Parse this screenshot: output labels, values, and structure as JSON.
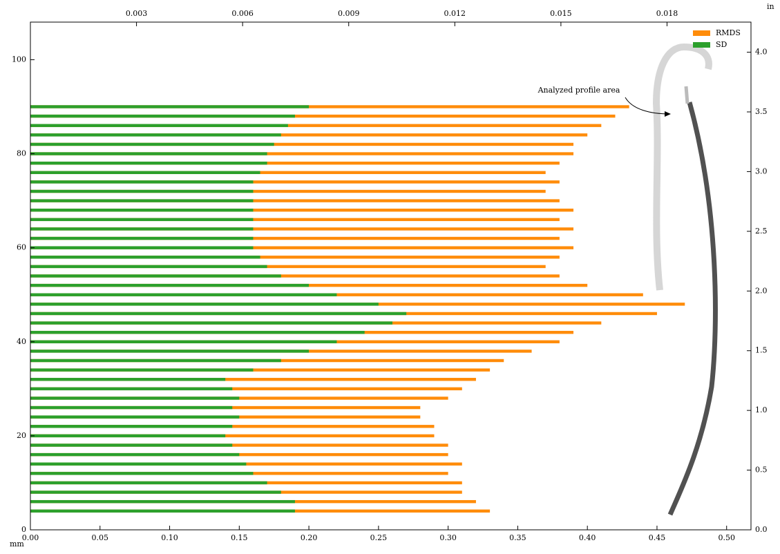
{
  "chart_data": {
    "type": "barh-overlap",
    "x_unit_label": "mm",
    "y2_unit_label": "in",
    "annotation": "Analyzed profile area",
    "y": [
      4,
      6,
      8,
      10,
      12,
      14,
      16,
      18,
      20,
      22,
      24,
      26,
      28,
      30,
      32,
      34,
      36,
      38,
      40,
      42,
      44,
      46,
      48,
      50,
      52,
      54,
      56,
      58,
      60,
      62,
      64,
      66,
      68,
      70,
      72,
      74,
      76,
      78,
      80,
      82,
      84,
      86,
      88,
      90
    ],
    "series": [
      {
        "name": "RMDS",
        "color": "#ff8c0a",
        "values": [
          0.33,
          0.32,
          0.31,
          0.31,
          0.3,
          0.31,
          0.3,
          0.3,
          0.29,
          0.29,
          0.28,
          0.28,
          0.3,
          0.31,
          0.32,
          0.33,
          0.34,
          0.36,
          0.38,
          0.39,
          0.41,
          0.45,
          0.47,
          0.44,
          0.4,
          0.38,
          0.37,
          0.38,
          0.39,
          0.38,
          0.39,
          0.38,
          0.39,
          0.38,
          0.37,
          0.38,
          0.37,
          0.38,
          0.39,
          0.39,
          0.4,
          0.41,
          0.42,
          0.43
        ]
      },
      {
        "name": "SD",
        "color": "#2ca02c",
        "values": [
          0.19,
          0.19,
          0.18,
          0.17,
          0.16,
          0.155,
          0.15,
          0.145,
          0.14,
          0.145,
          0.15,
          0.145,
          0.15,
          0.145,
          0.14,
          0.16,
          0.18,
          0.2,
          0.22,
          0.24,
          0.26,
          0.27,
          0.25,
          0.22,
          0.2,
          0.18,
          0.17,
          0.165,
          0.16,
          0.16,
          0.16,
          0.16,
          0.16,
          0.16,
          0.16,
          0.16,
          0.165,
          0.17,
          0.17,
          0.175,
          0.18,
          0.185,
          0.19,
          0.2
        ]
      }
    ],
    "xlim": [
      0,
      0.5175
    ],
    "xticks": [
      {
        "value": 0,
        "label": "0.00"
      },
      {
        "value": 0.05,
        "label": "0.05"
      },
      {
        "value": 0.1,
        "label": "0.10"
      },
      {
        "value": 0.15,
        "label": "0.15"
      },
      {
        "value": 0.2,
        "label": "0.20"
      },
      {
        "value": 0.25,
        "label": "0.25"
      },
      {
        "value": 0.3,
        "label": "0.30"
      },
      {
        "value": 0.35,
        "label": "0.35"
      },
      {
        "value": 0.4,
        "label": "0.40"
      },
      {
        "value": 0.45,
        "label": "0.45"
      },
      {
        "value": 0.5,
        "label": "0.50"
      }
    ],
    "x2lim": [
      0,
      0.020374
    ],
    "x2ticks": [
      0.003,
      0.006,
      0.009,
      0.012,
      0.015,
      0.018
    ],
    "ylim": [
      0,
      108
    ],
    "yticks": [
      0,
      20,
      40,
      60,
      80,
      100
    ],
    "y2lim": [
      0,
      4.252
    ],
    "y2ticks": [
      {
        "value": 0,
        "label": "0.0"
      },
      {
        "value": 0.5,
        "label": "0.5"
      },
      {
        "value": 1,
        "label": "1.0"
      },
      {
        "value": 1.5,
        "label": "1.5"
      },
      {
        "value": 2,
        "label": "2.0"
      },
      {
        "value": 2.5,
        "label": "2.5"
      },
      {
        "value": 3,
        "label": "3.0"
      },
      {
        "value": 3.5,
        "label": "3.5"
      },
      {
        "value": 4,
        "label": "4.0"
      }
    ],
    "legend": "upper right"
  }
}
